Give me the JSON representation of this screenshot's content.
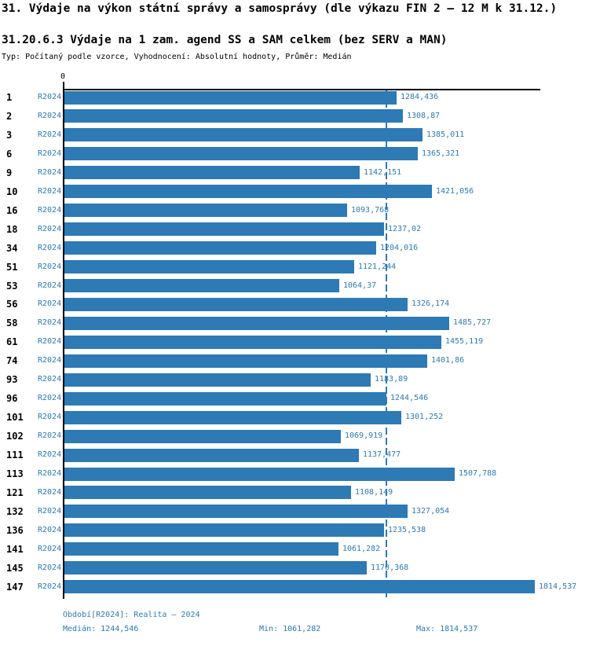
{
  "header": {
    "title": "31. Výdaje na výkon státní správy a samosprávy (dle výkazu FIN 2 – 12 M k 31.12.)",
    "subtitle": "31.20.6.3 Výdaje na 1 zam. agend SS a SAM celkem (bez SERV a MAN)",
    "meta": "Typ: Počítaný podle vzorce, Vyhodnocení: Absolutní hodnoty, Průměr: Medián"
  },
  "axis": {
    "zero_label": "0"
  },
  "chart_data": {
    "type": "bar",
    "orientation": "horizontal",
    "title": "31.20.6.3 Výdaje na 1 zam. agend SS a SAM celkem (bez SERV a MAN)",
    "categories": [
      "1",
      "2",
      "3",
      "6",
      "9",
      "10",
      "16",
      "18",
      "34",
      "51",
      "53",
      "56",
      "58",
      "61",
      "74",
      "93",
      "96",
      "101",
      "102",
      "111",
      "113",
      "121",
      "132",
      "136",
      "141",
      "145",
      "147"
    ],
    "series": [
      {
        "name": "R2024",
        "values": [
          1284.436,
          1308.87,
          1385.011,
          1365.321,
          1142.151,
          1421.056,
          1093.768,
          1237.02,
          1204.016,
          1121.244,
          1064.37,
          1326.174,
          1485.727,
          1455.119,
          1401.86,
          1183.89,
          1244.546,
          1301.252,
          1069.919,
          1137.477,
          1507.788,
          1108.149,
          1327.054,
          1235.538,
          1061.282,
          1170.368,
          1814.537
        ]
      }
    ],
    "value_labels": [
      "1284,436",
      "1308,87",
      "1385,011",
      "1365,321",
      "1142,151",
      "1421,056",
      "1093,768",
      "1237,02",
      "1204,016",
      "1121,244",
      "1064,37",
      "1326,174",
      "1485,727",
      "1455,119",
      "1401,86",
      "1183,89",
      "1244,546",
      "1301,252",
      "1069,919",
      "1137,477",
      "1507,788",
      "1108,149",
      "1327,054",
      "1235,538",
      "1061,282",
      "1170,368",
      "1814,537"
    ],
    "xlim": [
      0,
      1840
    ],
    "median": 1244.546,
    "min": 1061.282,
    "max": 1814.537,
    "grid": false,
    "legend": false,
    "median_reference_line": true
  },
  "footer": {
    "period": "Období[R2024]: Realita – 2024",
    "median": "Medián: 1244,546",
    "min": "Min: 1061,282",
    "max": "Max: 1814,537"
  },
  "colors": {
    "bar_blue": "#2d7ab5",
    "text_blue": "#2d7ab5",
    "axis_black": "#000000",
    "background": "#ffffff"
  }
}
